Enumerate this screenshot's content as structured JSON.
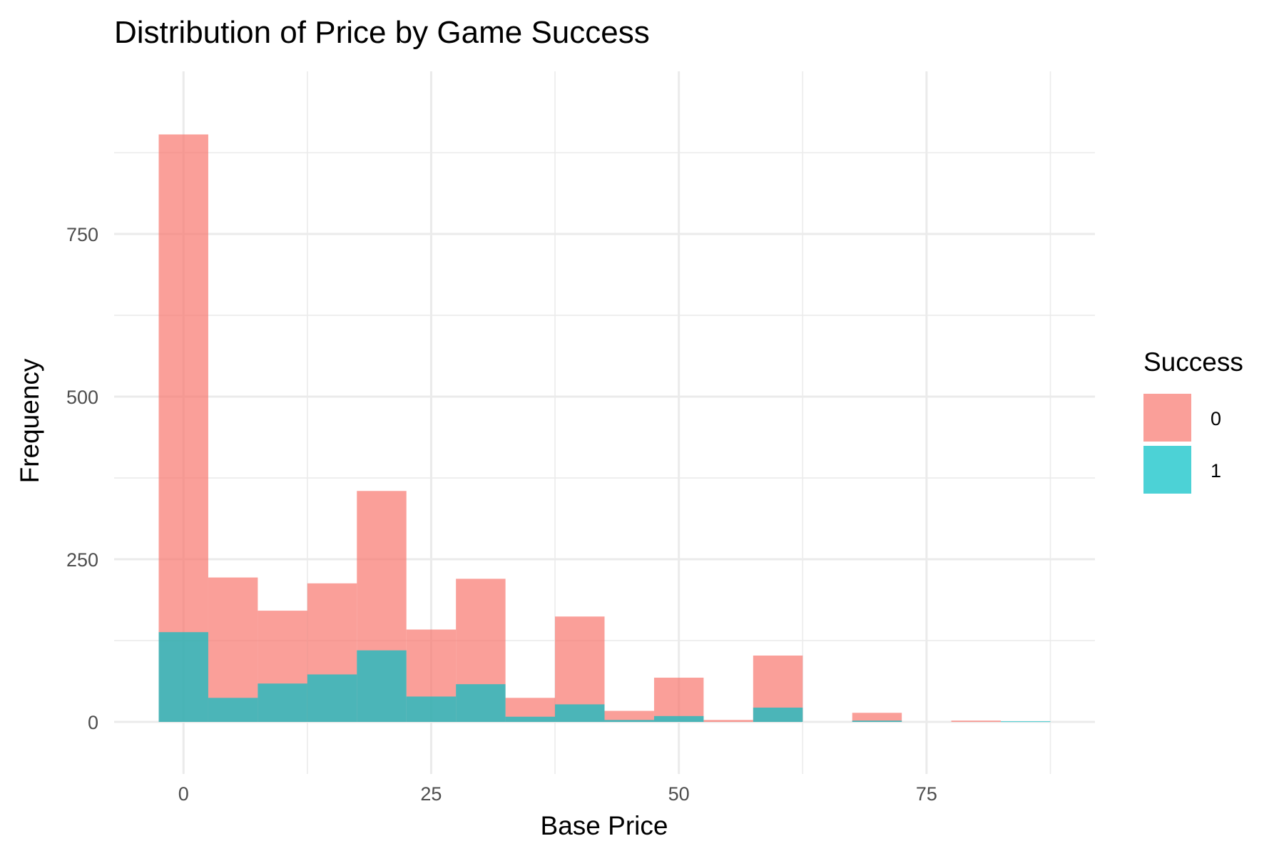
{
  "chart_data": {
    "type": "bar",
    "title": "Distribution of Price by Game Success",
    "xlabel": "Base Price",
    "ylabel": "Frequency",
    "xlim": [
      -7,
      92
    ],
    "ylim": [
      -80,
      1000
    ],
    "xticks": [
      0,
      25,
      50,
      75
    ],
    "xtick_labels": [
      "0",
      "25",
      "50",
      "75"
    ],
    "yticks": [
      0,
      250,
      500,
      750
    ],
    "ytick_labels": [
      "0",
      "250",
      "500",
      "750"
    ],
    "x_minor_grid": [
      12.5,
      37.5,
      62.5,
      87.5
    ],
    "y_minor_grid": [
      125,
      375,
      625,
      875
    ],
    "grid": true,
    "bin_width": 5,
    "stacking": "overlapping",
    "bin_centers": [
      0,
      5,
      10,
      15,
      20,
      25,
      30,
      35,
      40,
      45,
      50,
      55,
      60,
      65,
      70,
      75,
      80,
      85
    ],
    "series": [
      {
        "name": "0",
        "color": "#F8766D",
        "values": [
          903,
          222,
          171,
          213,
          355,
          142,
          220,
          37,
          162,
          17,
          68,
          3,
          102,
          0,
          14,
          0,
          2,
          0
        ]
      },
      {
        "name": "1",
        "color": "#00BFC4",
        "values": [
          138,
          37,
          59,
          73,
          110,
          39,
          58,
          8,
          27,
          3,
          9,
          0,
          22,
          0,
          2,
          0,
          0,
          1
        ]
      }
    ],
    "bar_opacity": 0.7,
    "legend": {
      "title": "Success",
      "position": "right",
      "entries": [
        "0",
        "1"
      ]
    }
  }
}
